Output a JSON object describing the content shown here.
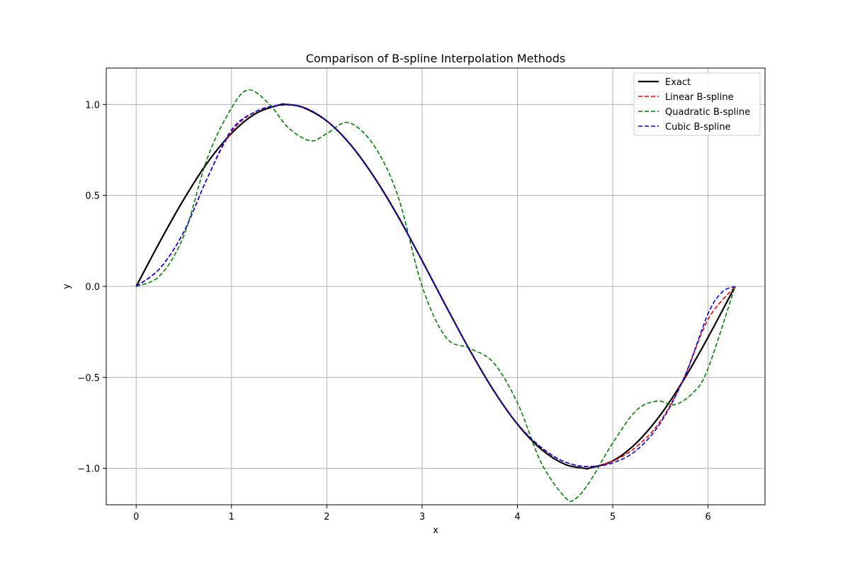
{
  "chart_data": {
    "type": "line",
    "title": "Comparison of B-spline Interpolation Methods",
    "xlabel": "x",
    "ylabel": "y",
    "xlim": [
      -0.314,
      6.597
    ],
    "ylim": [
      -1.2,
      1.2
    ],
    "xticks": [
      0,
      1,
      2,
      3,
      4,
      5,
      6
    ],
    "xtick_labels": [
      "0",
      "1",
      "2",
      "3",
      "4",
      "5",
      "6"
    ],
    "yticks": [
      -1.0,
      -0.5,
      0.0,
      0.5,
      1.0
    ],
    "ytick_labels": [
      "−1.0",
      "−0.5",
      "0.0",
      "0.5",
      "1.0"
    ],
    "grid": true,
    "legend_position": "top-right",
    "series": [
      {
        "name": "Exact",
        "color": "#000000",
        "style": "solid",
        "x": [
          0,
          0.25,
          0.5,
          0.75,
          1.0,
          1.25,
          1.5,
          1.5708,
          1.75,
          2.0,
          2.25,
          2.5,
          2.75,
          3.0,
          3.25,
          3.5,
          3.75,
          4.0,
          4.25,
          4.5,
          4.7124,
          4.75,
          5.0,
          5.25,
          5.5,
          5.75,
          6.0,
          6.2832
        ],
        "y": [
          0,
          0.247,
          0.479,
          0.682,
          0.841,
          0.949,
          0.997,
          1.0,
          0.984,
          0.909,
          0.778,
          0.598,
          0.382,
          0.141,
          -0.108,
          -0.351,
          -0.572,
          -0.757,
          -0.895,
          -0.978,
          -1.0,
          -0.999,
          -0.959,
          -0.859,
          -0.706,
          -0.508,
          -0.279,
          0.0
        ]
      },
      {
        "name": "Linear B-spline",
        "color": "#ff0000",
        "style": "dashed",
        "x": [
          0,
          0.25,
          0.5,
          0.75,
          1.0,
          1.25,
          1.5,
          1.75,
          2.0,
          2.25,
          2.5,
          2.75,
          3.0,
          3.25,
          3.5,
          3.75,
          4.0,
          4.25,
          4.5,
          4.75,
          5.0,
          5.25,
          5.5,
          5.75,
          6.0,
          6.2832
        ],
        "y": [
          0,
          0.1,
          0.3,
          0.6,
          0.85,
          0.96,
          0.995,
          0.985,
          0.91,
          0.78,
          0.6,
          0.385,
          0.14,
          -0.11,
          -0.35,
          -0.57,
          -0.755,
          -0.885,
          -0.965,
          -0.99,
          -0.96,
          -0.88,
          -0.74,
          -0.5,
          -0.18,
          0.0
        ]
      },
      {
        "name": "Quadratic B-spline",
        "color": "#008000",
        "style": "dashed",
        "x": [
          0,
          0.25,
          0.5,
          0.75,
          1.0,
          1.18,
          1.4,
          1.6,
          1.83,
          2.0,
          2.23,
          2.5,
          2.75,
          3.0,
          3.25,
          3.5,
          3.75,
          4.0,
          4.25,
          4.5,
          4.6,
          4.75,
          5.0,
          5.25,
          5.47,
          5.65,
          5.85,
          6.0,
          6.2832
        ],
        "y": [
          0,
          0.06,
          0.28,
          0.71,
          0.98,
          1.08,
          1.0,
          0.87,
          0.8,
          0.84,
          0.9,
          0.77,
          0.49,
          0.0,
          -0.28,
          -0.34,
          -0.42,
          -0.64,
          -0.97,
          -1.16,
          -1.17,
          -1.08,
          -0.86,
          -0.68,
          -0.63,
          -0.65,
          -0.58,
          -0.45,
          0.0
        ]
      },
      {
        "name": "Cubic B-spline",
        "color": "#0000ff",
        "style": "dashed",
        "x": [
          0,
          0.25,
          0.5,
          0.75,
          1.0,
          1.25,
          1.5,
          1.75,
          2.0,
          2.25,
          2.5,
          2.75,
          3.0,
          3.25,
          3.5,
          3.75,
          4.0,
          4.25,
          4.5,
          4.75,
          5.0,
          5.25,
          5.5,
          5.75,
          6.0,
          6.15,
          6.2832
        ],
        "y": [
          0,
          0.1,
          0.3,
          0.6,
          0.86,
          0.96,
          0.995,
          0.985,
          0.91,
          0.78,
          0.6,
          0.385,
          0.14,
          -0.11,
          -0.35,
          -0.57,
          -0.755,
          -0.885,
          -0.965,
          -0.99,
          -0.97,
          -0.9,
          -0.75,
          -0.5,
          -0.15,
          -0.03,
          0.0
        ]
      }
    ]
  }
}
